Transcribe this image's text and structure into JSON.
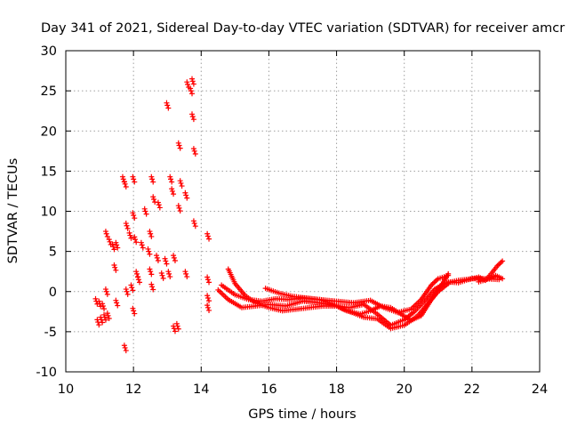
{
  "chart_data": {
    "type": "scatter",
    "title": "Day 341 of 2021, Sidereal Day-to-day VTEC variation (SDTVAR) for receiver amcr",
    "xlabel": "GPS time / hours",
    "ylabel": "SDTVAR / TECUs",
    "xlim": [
      10,
      24
    ],
    "ylim": [
      -10,
      30
    ],
    "xticks": [
      "10",
      "12",
      "14",
      "16",
      "18",
      "20",
      "22",
      "24"
    ],
    "yticks": [
      "-10",
      "-5",
      "0",
      "5",
      "10",
      "15",
      "20",
      "25",
      "30"
    ],
    "grid": true,
    "marker": "+",
    "series_color": "#ff0000",
    "clusters": [
      {
        "x": 10.9,
        "y": -1.2
      },
      {
        "x": 10.95,
        "y": -3.8
      },
      {
        "x": 11.0,
        "y": -1.5
      },
      {
        "x": 11.05,
        "y": -3.5
      },
      {
        "x": 11.1,
        "y": -1.8
      },
      {
        "x": 11.15,
        "y": -3.2
      },
      {
        "x": 11.2,
        "y": 0.0
      },
      {
        "x": 11.25,
        "y": -3.0
      },
      {
        "x": 11.2,
        "y": 7.2
      },
      {
        "x": 11.3,
        "y": 6.2
      },
      {
        "x": 11.4,
        "y": 5.6
      },
      {
        "x": 11.5,
        "y": 5.8
      },
      {
        "x": 11.45,
        "y": 3.0
      },
      {
        "x": 11.5,
        "y": -1.4
      },
      {
        "x": 11.7,
        "y": 14.0
      },
      {
        "x": 11.75,
        "y": 13.4
      },
      {
        "x": 11.75,
        "y": -7.0
      },
      {
        "x": 11.8,
        "y": 8.2
      },
      {
        "x": 11.8,
        "y": 0.0
      },
      {
        "x": 11.9,
        "y": 7.0
      },
      {
        "x": 11.95,
        "y": 0.5
      },
      {
        "x": 12.0,
        "y": 9.5
      },
      {
        "x": 12.0,
        "y": 14.0
      },
      {
        "x": 12.0,
        "y": -2.4
      },
      {
        "x": 12.05,
        "y": 6.5
      },
      {
        "x": 12.1,
        "y": 2.2
      },
      {
        "x": 12.15,
        "y": 1.5
      },
      {
        "x": 12.25,
        "y": 5.8
      },
      {
        "x": 12.35,
        "y": 10.0
      },
      {
        "x": 12.45,
        "y": 5.0
      },
      {
        "x": 12.5,
        "y": 2.5
      },
      {
        "x": 12.5,
        "y": 7.2
      },
      {
        "x": 12.55,
        "y": 14.0
      },
      {
        "x": 12.55,
        "y": 0.6
      },
      {
        "x": 12.6,
        "y": 11.5
      },
      {
        "x": 12.7,
        "y": 4.2
      },
      {
        "x": 12.75,
        "y": 10.8
      },
      {
        "x": 12.85,
        "y": 2.0
      },
      {
        "x": 12.95,
        "y": 3.8
      },
      {
        "x": 13.0,
        "y": 23.2
      },
      {
        "x": 13.05,
        "y": 2.2
      },
      {
        "x": 13.1,
        "y": 14.0
      },
      {
        "x": 13.15,
        "y": 12.5
      },
      {
        "x": 13.2,
        "y": 4.2
      },
      {
        "x": 13.2,
        "y": -4.6
      },
      {
        "x": 13.3,
        "y": -4.3
      },
      {
        "x": 13.35,
        "y": 18.2
      },
      {
        "x": 13.35,
        "y": 10.4
      },
      {
        "x": 13.4,
        "y": 13.5
      },
      {
        "x": 13.55,
        "y": 2.2
      },
      {
        "x": 13.55,
        "y": 12.0
      },
      {
        "x": 13.6,
        "y": 25.8
      },
      {
        "x": 13.7,
        "y": 25.0
      },
      {
        "x": 13.75,
        "y": 26.2
      },
      {
        "x": 13.75,
        "y": 21.8
      },
      {
        "x": 13.8,
        "y": 17.5
      },
      {
        "x": 13.8,
        "y": 8.5
      },
      {
        "x": 14.2,
        "y": 6.9
      },
      {
        "x": 14.2,
        "y": 1.5
      },
      {
        "x": 14.2,
        "y": -0.8
      },
      {
        "x": 14.2,
        "y": -2.0
      }
    ],
    "traces": [
      {
        "points": [
          [
            14.5,
            0.2
          ],
          [
            14.8,
            -1.0
          ],
          [
            15.2,
            -2.0
          ],
          [
            15.6,
            -1.8
          ],
          [
            16.0,
            -1.6
          ],
          [
            16.5,
            -1.8
          ],
          [
            17.0,
            -1.2
          ],
          [
            17.5,
            -1.4
          ],
          [
            18.0,
            -1.8
          ],
          [
            18.4,
            -2.0
          ],
          [
            18.8,
            -1.6
          ],
          [
            19.2,
            -2.8
          ],
          [
            19.6,
            -4.2
          ],
          [
            20.0,
            -3.5
          ],
          [
            20.3,
            -2.5
          ],
          [
            20.6,
            -1.2
          ],
          [
            20.9,
            0.3
          ],
          [
            21.2,
            1.0
          ],
          [
            21.6,
            1.4
          ],
          [
            22.0,
            1.6
          ],
          [
            22.4,
            1.6
          ],
          [
            22.8,
            1.5
          ]
        ]
      },
      {
        "points": [
          [
            14.6,
            0.8
          ],
          [
            15.0,
            -0.4
          ],
          [
            15.4,
            -1.0
          ],
          [
            15.8,
            -1.2
          ],
          [
            16.2,
            -0.9
          ],
          [
            16.6,
            -1.0
          ],
          [
            17.0,
            -0.8
          ],
          [
            17.5,
            -1.0
          ],
          [
            18.0,
            -1.2
          ],
          [
            18.5,
            -1.4
          ],
          [
            19.0,
            -1.1
          ],
          [
            19.4,
            -2.0
          ],
          [
            19.8,
            -2.6
          ],
          [
            20.2,
            -2.2
          ],
          [
            20.5,
            -1.0
          ],
          [
            20.8,
            0.8
          ],
          [
            21.0,
            1.6
          ],
          [
            21.3,
            2.0
          ]
        ]
      },
      {
        "points": [
          [
            14.8,
            2.8
          ],
          [
            15.0,
            1.0
          ],
          [
            15.3,
            -0.5
          ],
          [
            15.6,
            -1.4
          ],
          [
            16.0,
            -2.0
          ],
          [
            16.4,
            -2.4
          ],
          [
            16.8,
            -2.2
          ],
          [
            17.2,
            -2.0
          ],
          [
            17.6,
            -1.8
          ],
          [
            18.0,
            -1.8
          ],
          [
            18.4,
            -2.5
          ],
          [
            18.8,
            -3.2
          ],
          [
            19.2,
            -3.4
          ],
          [
            19.6,
            -4.6
          ],
          [
            20.0,
            -4.2
          ],
          [
            20.4,
            -3.0
          ],
          [
            20.7,
            -1.5
          ],
          [
            21.0,
            0.0
          ],
          [
            21.3,
            1.0
          ]
        ]
      },
      {
        "points": [
          [
            15.9,
            0.4
          ],
          [
            16.3,
            -0.2
          ],
          [
            16.7,
            -0.6
          ],
          [
            17.1,
            -0.8
          ],
          [
            17.5,
            -1.0
          ],
          [
            17.9,
            -1.6
          ],
          [
            18.3,
            -2.4
          ],
          [
            18.7,
            -2.8
          ],
          [
            19.0,
            -2.4
          ],
          [
            19.3,
            -1.8
          ],
          [
            19.6,
            -2.0
          ],
          [
            19.9,
            -2.8
          ],
          [
            20.2,
            -3.6
          ],
          [
            20.5,
            -3.0
          ],
          [
            20.8,
            -1.0
          ],
          [
            21.1,
            0.8
          ],
          [
            21.3,
            2.2
          ]
        ]
      },
      {
        "points": [
          [
            21.3,
            1.2
          ],
          [
            21.6,
            1.1
          ],
          [
            21.9,
            1.5
          ],
          [
            22.2,
            1.8
          ],
          [
            22.4,
            1.4
          ],
          [
            22.6,
            2.4
          ],
          [
            22.75,
            3.2
          ],
          [
            22.9,
            3.8
          ]
        ]
      },
      {
        "points": [
          [
            22.2,
            1.2
          ],
          [
            22.5,
            1.6
          ],
          [
            22.7,
            2.0
          ],
          [
            22.9,
            1.6
          ]
        ]
      }
    ]
  }
}
